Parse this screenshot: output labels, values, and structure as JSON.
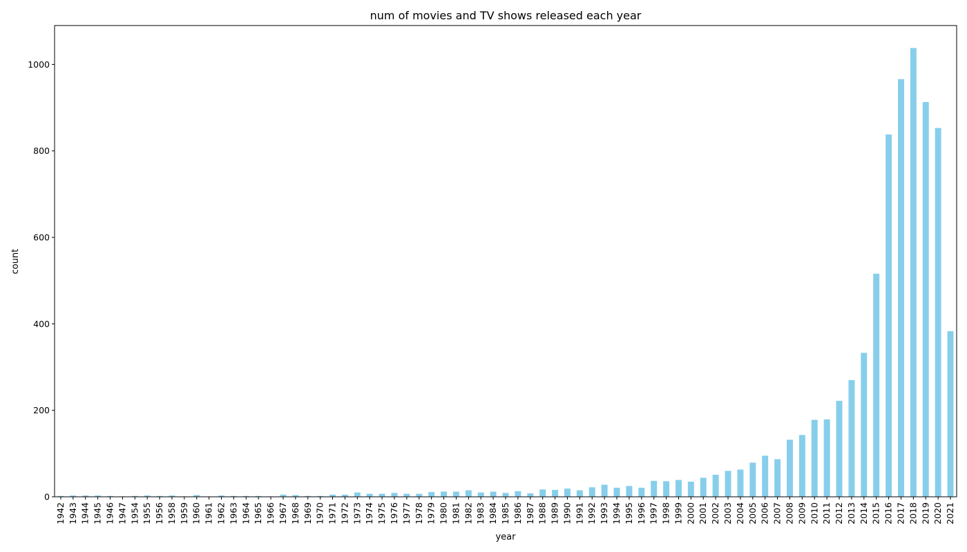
{
  "chart_data": {
    "type": "bar",
    "title": "num of movies and TV shows released each year",
    "xlabel": "year",
    "ylabel": "count",
    "ylim": [
      0,
      1090
    ],
    "yticks": [
      0,
      200,
      400,
      600,
      800,
      1000
    ],
    "grid": false,
    "bar_color": "#87ceeb",
    "categories": [
      "1942",
      "1943",
      "1944",
      "1945",
      "1946",
      "1947",
      "1954",
      "1955",
      "1956",
      "1958",
      "1959",
      "1960",
      "1961",
      "1962",
      "1963",
      "1964",
      "1965",
      "1966",
      "1967",
      "1968",
      "1969",
      "1970",
      "1971",
      "1972",
      "1973",
      "1974",
      "1975",
      "1976",
      "1977",
      "1978",
      "1979",
      "1980",
      "1981",
      "1982",
      "1983",
      "1984",
      "1985",
      "1986",
      "1987",
      "1988",
      "1989",
      "1990",
      "1991",
      "1992",
      "1993",
      "1994",
      "1995",
      "1996",
      "1997",
      "1998",
      "1999",
      "2000",
      "2001",
      "2002",
      "2003",
      "2004",
      "2005",
      "2006",
      "2007",
      "2008",
      "2009",
      "2010",
      "2011",
      "2012",
      "2013",
      "2014",
      "2015",
      "2016",
      "2017",
      "2018",
      "2019",
      "2020",
      "2021"
    ],
    "values": [
      2,
      3,
      3,
      3,
      2,
      1,
      2,
      3,
      2,
      3,
      1,
      4,
      1,
      3,
      2,
      2,
      2,
      1,
      5,
      4,
      2,
      2,
      5,
      5,
      10,
      7,
      7,
      9,
      7,
      7,
      11,
      12,
      12,
      15,
      10,
      12,
      9,
      13,
      8,
      17,
      16,
      19,
      15,
      22,
      28,
      21,
      25,
      21,
      37,
      36,
      39,
      35,
      44,
      51,
      60,
      63,
      79,
      95,
      87,
      132,
      143,
      178,
      179,
      222,
      270,
      333,
      516,
      838,
      966,
      1038,
      913,
      853,
      383
    ]
  }
}
